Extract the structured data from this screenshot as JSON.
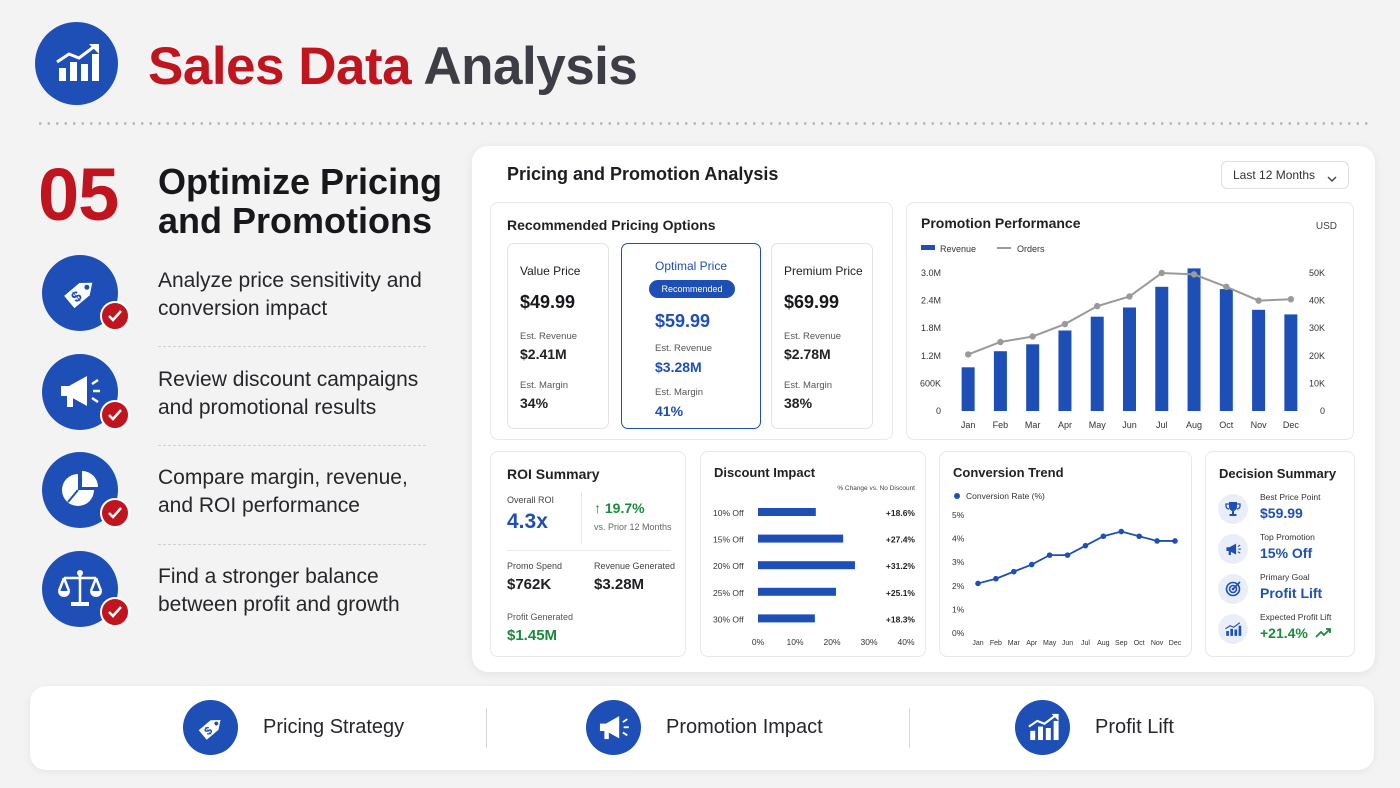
{
  "header": {
    "title_part1": "Sales Data",
    "title_part2": "Analysis",
    "logo_icon": "bar-chart-growth-icon"
  },
  "section": {
    "number": "05",
    "title": "Optimize Pricing and Promotions"
  },
  "features": [
    {
      "icon": "price-tag-icon",
      "text": "Analyze price sensitivity and conversion impact"
    },
    {
      "icon": "megaphone-icon",
      "text": "Review discount campaigns and promotional results"
    },
    {
      "icon": "pie-chart-icon",
      "text": "Compare margin, revenue, and ROI performance"
    },
    {
      "icon": "balance-scale-icon",
      "text": "Find a stronger balance between profit and growth"
    }
  ],
  "panel": {
    "title": "Pricing and Promotion Analysis",
    "range": "Last 12 Months"
  },
  "pricing": {
    "title": "Recommended Pricing Options",
    "options": [
      {
        "name": "Value Price",
        "price": "$49.99",
        "rev_label": "Est. Revenue",
        "rev": "$2.41M",
        "margin_label": "Est. Margin",
        "margin": "34%"
      },
      {
        "name": "Optimal Price",
        "badge": "Recommended",
        "price": "$59.99",
        "rev_label": "Est. Revenue",
        "rev": "$3.28M",
        "margin_label": "Est. Margin",
        "margin": "41%"
      },
      {
        "name": "Premium Price",
        "price": "$69.99",
        "rev_label": "Est. Revenue",
        "rev": "$2.78M",
        "margin_label": "Est. Margin",
        "margin": "38%"
      }
    ]
  },
  "roi": {
    "title": "ROI Summary",
    "overall_label": "Overall ROI",
    "overall": "4.3x",
    "change": "19.7%",
    "change_note": "vs. Prior 12 Months",
    "spend_label": "Promo Spend",
    "spend": "$762K",
    "revenue_label": "Revenue Generated",
    "revenue": "$3.28M",
    "profit_label": "Profit Generated",
    "profit": "$1.45M"
  },
  "decision": {
    "title": "Decision Summary",
    "items": [
      {
        "icon": "trophy-icon",
        "label": "Best Price Point",
        "value": "$59.99"
      },
      {
        "icon": "megaphone-icon",
        "label": "Top Promotion",
        "value": "15% Off"
      },
      {
        "icon": "target-icon",
        "label": "Primary Goal",
        "value": "Profit Lift"
      },
      {
        "icon": "growth-chart-icon",
        "label": "Expected Profit Lift",
        "value": "+21.4%"
      }
    ]
  },
  "bottom": [
    {
      "icon": "price-tag-icon",
      "label": "Pricing Strategy"
    },
    {
      "icon": "megaphone-icon",
      "label": "Promotion Impact"
    },
    {
      "icon": "growth-chart-icon",
      "label": "Profit Lift"
    }
  ],
  "colors": {
    "brand_red": "#c0151f",
    "brand_blue": "#1e4fb6",
    "positive_green": "#1a8a3c",
    "orders_gray": "#9a9a9a"
  },
  "chart_data": [
    {
      "type": "bar",
      "title": "Promotion Performance",
      "unit_label": "USD",
      "categories": [
        "Jan",
        "Feb",
        "Mar",
        "Apr",
        "May",
        "Jun",
        "Jul",
        "Aug",
        "Oct",
        "Nov",
        "Dec"
      ],
      "series": [
        {
          "name": "Revenue",
          "axis": "left",
          "values": [
            0.95,
            1.3,
            1.45,
            1.75,
            2.05,
            2.25,
            2.7,
            3.1,
            2.65,
            2.2,
            2.1
          ]
        },
        {
          "name": "Orders",
          "type": "line",
          "axis": "right",
          "values": [
            20500,
            25000,
            27000,
            31500,
            38000,
            41500,
            50000,
            49500,
            45000,
            40000,
            40500
          ]
        }
      ],
      "y_left_ticks": [
        "0",
        "600K",
        "1.2M",
        "1.8M",
        "2.4M",
        "3.0M"
      ],
      "y_right_ticks": [
        "0",
        "10K",
        "20K",
        "30K",
        "40K",
        "50K"
      ],
      "ylim": [
        0,
        3.0
      ],
      "ylim_right": [
        0,
        50000
      ],
      "legend": "top-left"
    },
    {
      "type": "bar",
      "orientation": "horizontal",
      "title": "Discount Impact",
      "subtitle": "% Change vs. No Discount",
      "categories": [
        "10% Off",
        "15% Off",
        "20% Off",
        "25% Off",
        "30% Off"
      ],
      "values": [
        18.6,
        27.4,
        31.2,
        25.1,
        18.3
      ],
      "labels": [
        "+18.6%",
        "+27.4%",
        "+31.2%",
        "+25.1%",
        "+18.3%"
      ],
      "x_ticks": [
        "0%",
        "10%",
        "20%",
        "30%",
        "40%"
      ],
      "xlim": [
        0,
        40
      ]
    },
    {
      "type": "line",
      "title": "Conversion Trend",
      "series": [
        {
          "name": "Conversion Rate (%)",
          "values": [
            2.1,
            2.3,
            2.6,
            2.9,
            3.3,
            3.3,
            3.7,
            4.1,
            4.3,
            4.1,
            3.9,
            3.9
          ]
        }
      ],
      "x": [
        "Jan",
        "Feb",
        "Mar",
        "Apr",
        "May",
        "Jun",
        "Jul",
        "Aug",
        "Sep",
        "Oct",
        "Nov",
        "Dec"
      ],
      "y_ticks": [
        "0%",
        "1%",
        "2%",
        "3%",
        "4%",
        "5%"
      ],
      "ylim": [
        0,
        5
      ],
      "legend": "top-left"
    }
  ]
}
